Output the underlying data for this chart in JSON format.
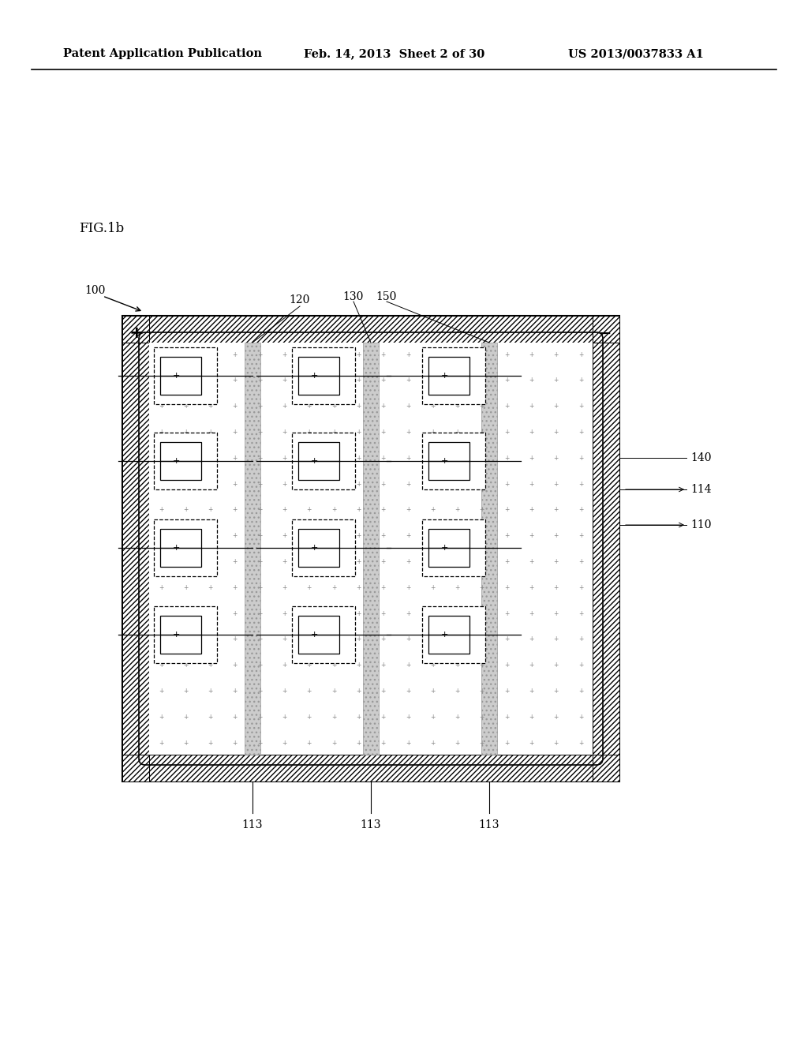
{
  "bg_color": "#ffffff",
  "header_text1": "Patent Application Publication",
  "header_text2": "Feb. 14, 2013  Sheet 2 of 30",
  "header_text3": "US 2013/0037833 A1",
  "fig_label": "FIG.1b",
  "ref_100": "100",
  "ref_110": "110",
  "ref_113": "113",
  "ref_114": "114",
  "ref_120": "120",
  "ref_130": "130",
  "ref_140": "140",
  "ref_150": "150",
  "line_color": "#000000",
  "hatch_color": "#000000",
  "stripe_color": "#bbbbbb",
  "plus_text_color": "#666666",
  "cell_line_color": "#000000"
}
